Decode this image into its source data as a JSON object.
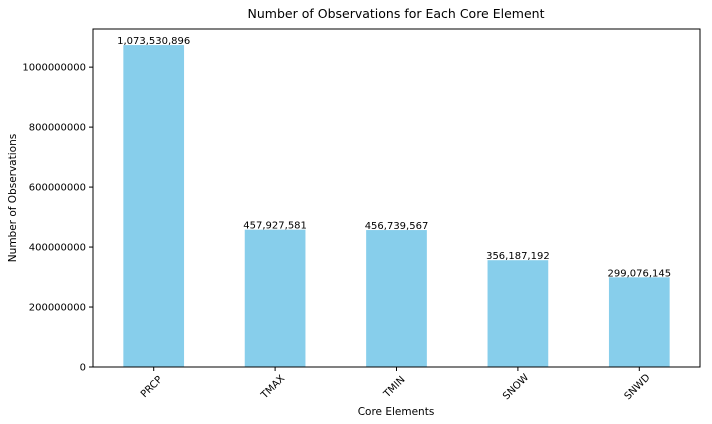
{
  "chart_data": {
    "type": "bar",
    "title": "Number of Observations for Each Core Element",
    "xlabel": "Core Elements",
    "ylabel": "Number of Observations",
    "categories": [
      "PRCP",
      "TMAX",
      "TMIN",
      "SNOW",
      "SNWD"
    ],
    "values": [
      1073530896,
      457927581,
      456739567,
      356187192,
      299076145
    ],
    "data_labels": [
      "1,073,530,896",
      "457,927,581",
      "456,739,567",
      "356,187,192",
      "299,076,145"
    ],
    "yticks": [
      0,
      200000000,
      400000000,
      600000000,
      800000000,
      1000000000
    ],
    "ytick_labels": [
      "0",
      "200000000",
      "400000000",
      "600000000",
      "800000000",
      "1000000000"
    ],
    "ylim": [
      0,
      1127207440
    ],
    "bar_color": "#87ceeb",
    "grid": false,
    "legend": "none"
  }
}
